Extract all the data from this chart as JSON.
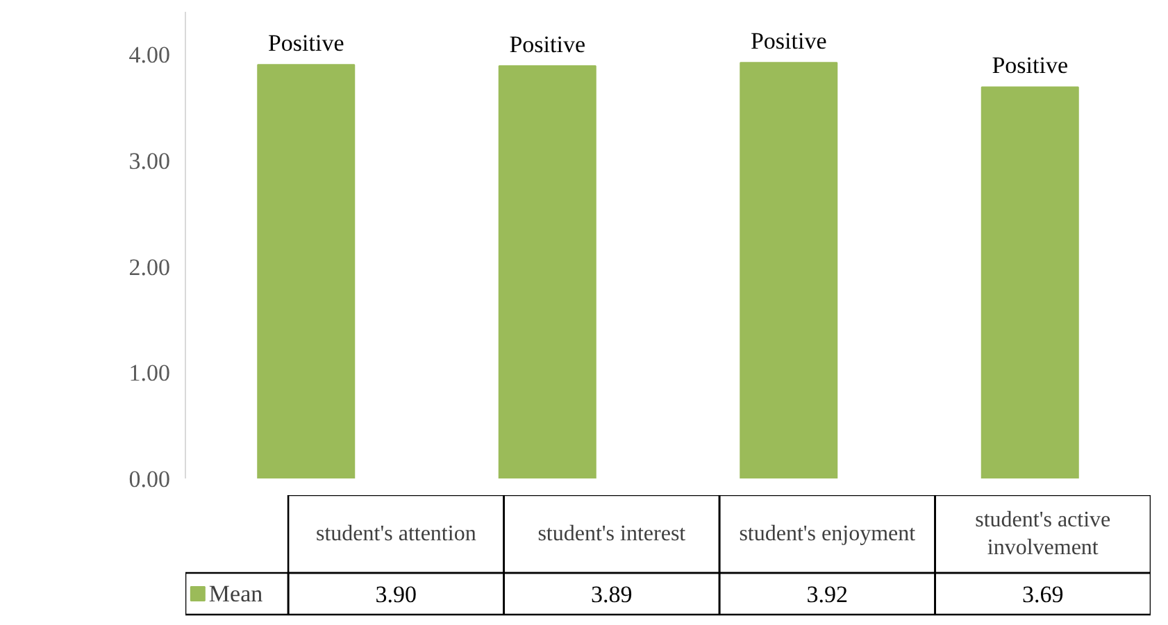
{
  "chart_data": {
    "type": "bar",
    "categories": [
      "student's attention",
      "student's interest",
      "student's enjoyment",
      "student's active involvement"
    ],
    "series": [
      {
        "name": "Mean",
        "color": "#9bbb59",
        "values": [
          3.9,
          3.89,
          3.92,
          3.69
        ],
        "value_labels": [
          "3.90",
          "3.89",
          "3.92",
          "3.69"
        ]
      }
    ],
    "ylim": [
      0,
      4.4
    ],
    "yticks": [
      {
        "value": 0,
        "label": "0.00"
      },
      {
        "value": 1,
        "label": "1.00"
      },
      {
        "value": 2,
        "label": "2.00"
      },
      {
        "value": 3,
        "label": "3.00"
      },
      {
        "value": 4,
        "label": "4.00"
      }
    ],
    "grid": false,
    "annotations": [
      "Positive",
      "Positive",
      "Positive",
      "Positive"
    ]
  }
}
